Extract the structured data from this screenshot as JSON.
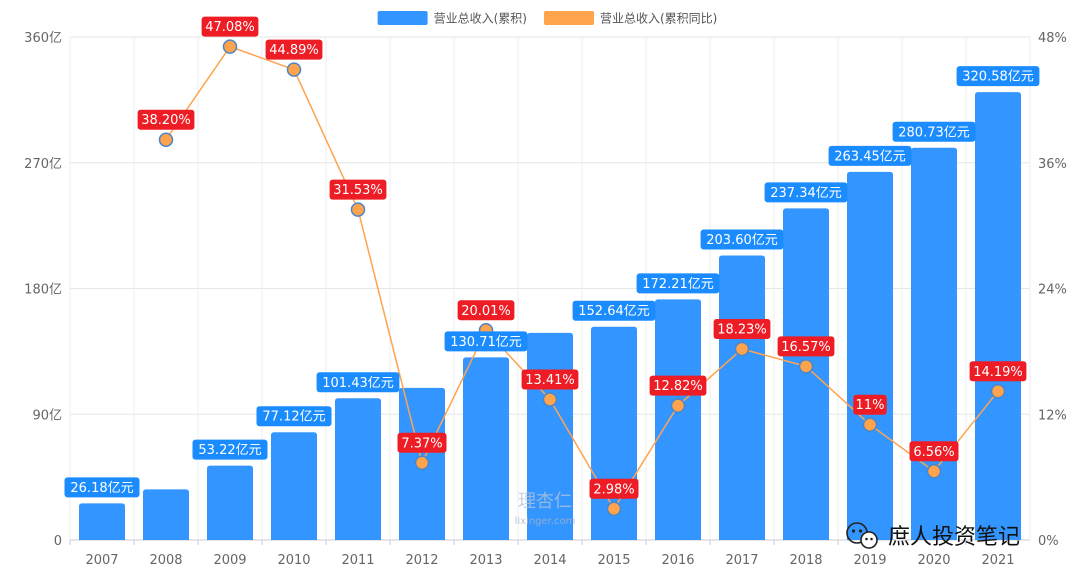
{
  "chart_data": {
    "type": "bar",
    "categories": [
      "2007",
      "2008",
      "2009",
      "2010",
      "2011",
      "2012",
      "2013",
      "2014",
      "2015",
      "2016",
      "2017",
      "2018",
      "2019",
      "2020",
      "2021"
    ],
    "series": [
      {
        "name": "营业总收入(累积)",
        "type": "bar",
        "axis": "left",
        "color": "#3395ff",
        "values": [
          26.18,
          36.2,
          53.22,
          77.12,
          101.43,
          108.9,
          130.71,
          148.2,
          152.64,
          172.21,
          203.6,
          237.34,
          263.45,
          280.73,
          320.58
        ],
        "labels": [
          "26.18亿元",
          null,
          "53.22亿元",
          "77.12亿元",
          "101.43亿元",
          null,
          "130.71亿元",
          null,
          "152.64亿元",
          "172.21亿元",
          "203.60亿元",
          "237.34亿元",
          "263.45亿元",
          "280.73亿元",
          "320.58亿元"
        ]
      },
      {
        "name": "营业总收入(累积同比)",
        "type": "line",
        "axis": "right",
        "color": "#ffa34d",
        "values": [
          null,
          38.2,
          47.08,
          44.89,
          31.53,
          7.37,
          20.01,
          13.41,
          2.98,
          12.82,
          18.23,
          16.57,
          11,
          6.56,
          14.19
        ],
        "labels": [
          null,
          "38.20%",
          "47.08%",
          "44.89%",
          "31.53%",
          "7.37%",
          "20.01%",
          "13.41%",
          "2.98%",
          "12.82%",
          "18.23%",
          "16.57%",
          "11%",
          "6.56%",
          "14.19%"
        ]
      }
    ],
    "y_left": {
      "ylim": [
        0,
        360
      ],
      "ticks": [
        0,
        90,
        180,
        270,
        360
      ],
      "tick_labels": [
        "0",
        "90亿",
        "180亿",
        "270亿",
        "360亿"
      ]
    },
    "y_right": {
      "ylim": [
        0,
        48
      ],
      "ticks": [
        0,
        12,
        24,
        36,
        48
      ],
      "tick_labels": [
        "0%",
        "12%",
        "24%",
        "36%",
        "48%"
      ]
    },
    "grid": true,
    "legend_position": "top-center",
    "bar_label_color": "#1a8cff",
    "line_label_color": "#ee1c25"
  },
  "watermark": {
    "logo_text": "理杏仁",
    "site_text": "lixinger.com"
  },
  "signature": {
    "text": "庶人投资笔记",
    "icon": "wechat-icon"
  }
}
